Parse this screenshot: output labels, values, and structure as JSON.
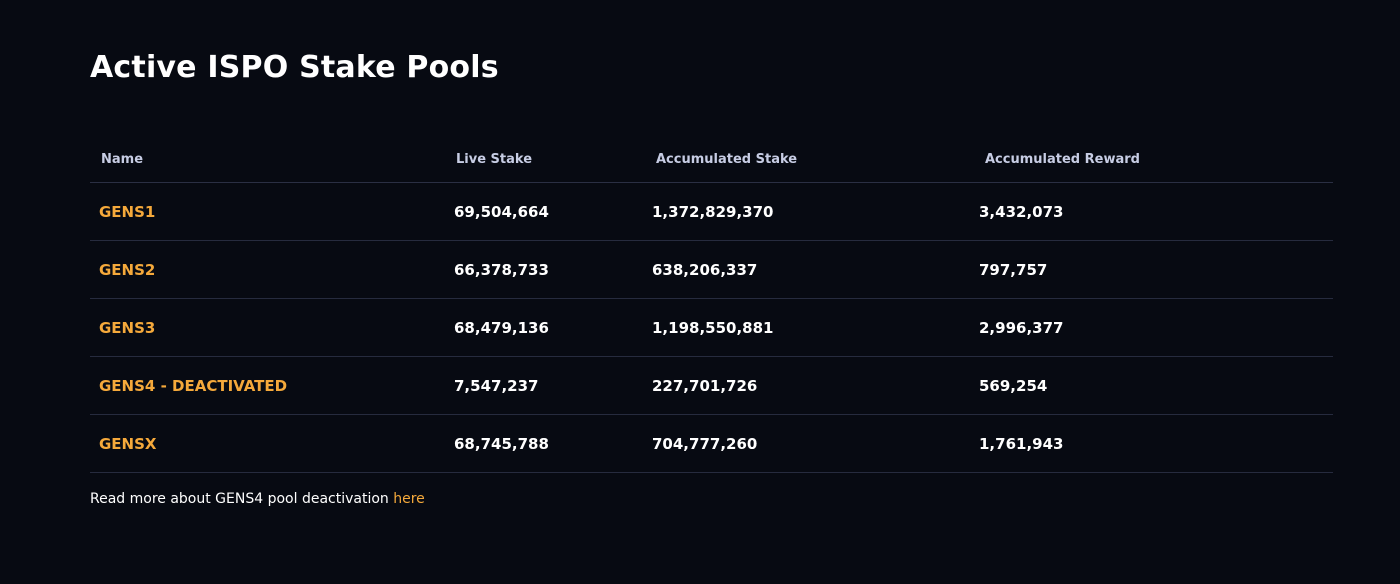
{
  "page": {
    "title": "Active ISPO Stake Pools"
  },
  "table": {
    "headers": [
      "Name",
      "Live Stake",
      "Accumulated Stake",
      "Accumulated Reward"
    ],
    "rows": [
      {
        "name": "GENS1",
        "live_stake": "69,504,664",
        "accumulated_stake": "1,372,829,370",
        "accumulated_reward": "3,432,073"
      },
      {
        "name": "GENS2",
        "live_stake": "66,378,733",
        "accumulated_stake": "638,206,337",
        "accumulated_reward": "797,757"
      },
      {
        "name": "GENS3",
        "live_stake": "68,479,136",
        "accumulated_stake": "1,198,550,881",
        "accumulated_reward": "2,996,377"
      },
      {
        "name": "GENS4 - DEACTIVATED",
        "live_stake": "7,547,237",
        "accumulated_stake": "227,701,726",
        "accumulated_reward": "569,254"
      },
      {
        "name": "GENSX",
        "live_stake": "68,745,788",
        "accumulated_stake": "704,777,260",
        "accumulated_reward": "1,761,943"
      }
    ]
  },
  "footer": {
    "text": "Read more about GENS4 pool deactivation ",
    "link_label": "here"
  },
  "colors": {
    "background": "#070a12",
    "accent": "#f5a93b",
    "header_text": "#c7cde4",
    "divider": "#262b3e"
  }
}
